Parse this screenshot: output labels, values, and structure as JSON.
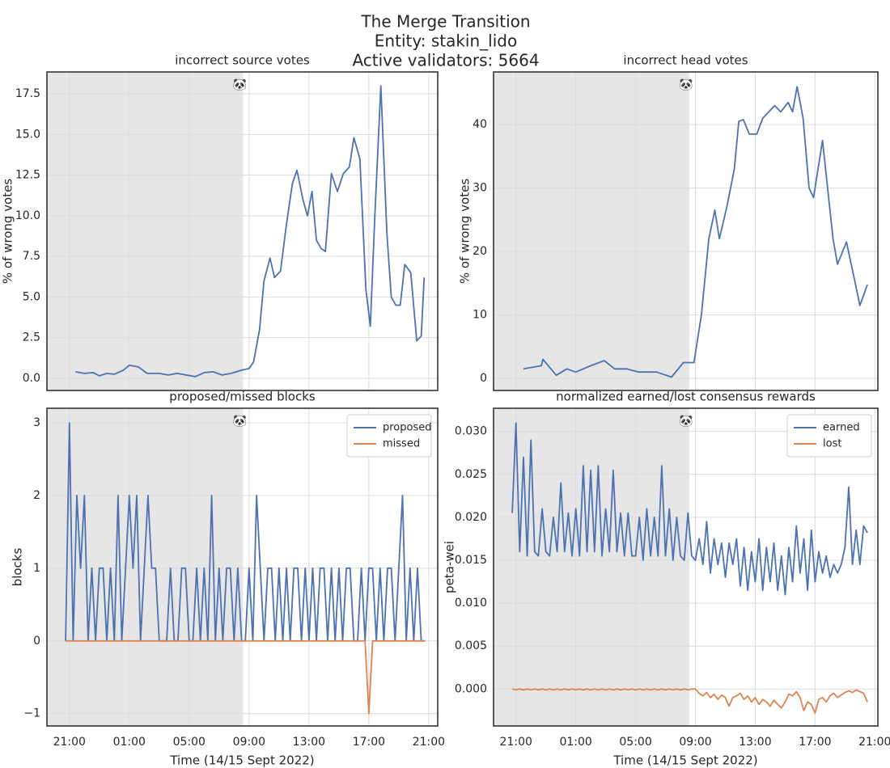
{
  "title": [
    "The Merge Transition",
    "Entity: stakin_lido",
    "Active validators: 5664"
  ],
  "chart_data": [
    {
      "type": "line",
      "title": "incorrect source votes",
      "ylabel": "% of wrong votes",
      "color": "#4c72b0",
      "grid": true,
      "shade": [
        19.5,
        32.6
      ],
      "annotation": {
        "text": "🐼",
        "x": 32.6
      },
      "xlim": [
        19.5,
        45.6
      ],
      "xticks": [
        21,
        25,
        29,
        33,
        37,
        41,
        45
      ],
      "ylim": [
        -0.75,
        18.85
      ],
      "yticks": [
        {
          "value": 0,
          "label": "0.0"
        },
        2.5,
        {
          "value": 5,
          "label": "5.0"
        },
        7.5,
        {
          "value": 10,
          "label": "10.0"
        },
        12.5,
        {
          "value": 15,
          "label": "15.0"
        },
        17.5
      ],
      "x": [
        21.4,
        22.0,
        22.6,
        23.0,
        23.5,
        24.0,
        24.6,
        25.0,
        25.6,
        26.2,
        27.0,
        27.6,
        28.2,
        28.8,
        29.4,
        30.0,
        30.6,
        31.2,
        31.8,
        32.5,
        33.0,
        33.3,
        33.7,
        34.0,
        34.4,
        34.7,
        35.1,
        35.5,
        35.9,
        36.2,
        36.6,
        36.9,
        37.2,
        37.5,
        37.8,
        38.1,
        38.5,
        38.9,
        39.3,
        39.7,
        40.0,
        40.4,
        40.8,
        41.1,
        41.4,
        41.8,
        42.2,
        42.5,
        42.8,
        43.1,
        43.4,
        43.8,
        44.2,
        44.5,
        44.7
      ],
      "values": [
        0.4,
        0.3,
        0.35,
        0.15,
        0.3,
        0.25,
        0.5,
        0.8,
        0.7,
        0.3,
        0.3,
        0.2,
        0.3,
        0.2,
        0.1,
        0.35,
        0.4,
        0.2,
        0.3,
        0.5,
        0.6,
        1.0,
        3.0,
        6.0,
        7.4,
        6.2,
        6.6,
        9.5,
        12.0,
        12.8,
        11.0,
        10.0,
        11.5,
        8.5,
        8.0,
        7.8,
        12.6,
        11.5,
        12.6,
        13.0,
        14.8,
        13.5,
        5.5,
        3.2,
        10.0,
        18.0,
        9.0,
        5.0,
        4.5,
        4.5,
        7.0,
        6.5,
        2.3,
        2.6,
        6.2
      ]
    },
    {
      "type": "line",
      "title": "incorrect head votes",
      "ylabel": "% of wrong votes",
      "color": "#4c72b0",
      "grid": true,
      "shade": [
        19.5,
        32.6
      ],
      "annotation": {
        "text": "🐼",
        "x": 32.6
      },
      "xlim": [
        19.5,
        45.2
      ],
      "xticks": [
        21,
        25,
        29,
        33,
        37,
        41,
        45
      ],
      "ylim": [
        -1.9,
        48.3
      ],
      "yticks": [
        0,
        10,
        20,
        30,
        40
      ],
      "x": [
        21.5,
        22.7,
        22.8,
        23.7,
        24.4,
        25.0,
        26.0,
        26.9,
        27.6,
        28.4,
        29.2,
        30.4,
        31.4,
        32.2,
        32.9,
        33.4,
        33.9,
        34.3,
        34.6,
        35.1,
        35.6,
        35.9,
        36.2,
        36.6,
        37.1,
        37.5,
        38.3,
        38.7,
        39.2,
        39.5,
        39.8,
        40.2,
        40.6,
        40.9,
        41.5,
        42.2,
        42.5,
        43.1,
        43.6,
        44.0,
        44.5
      ],
      "values": [
        1.5,
        2,
        3,
        0.5,
        1.5,
        1,
        2,
        2.8,
        1.5,
        1.5,
        1,
        1,
        0.2,
        2.5,
        2.5,
        10,
        22,
        26.5,
        22,
        27,
        33,
        40.5,
        40.8,
        38.5,
        38.5,
        41,
        43,
        42,
        43.5,
        42,
        46,
        41,
        30,
        28.5,
        37.5,
        22,
        18,
        21.5,
        16,
        11.5,
        14.8
      ]
    },
    {
      "type": "line",
      "title": "proposed/missed blocks",
      "ylabel": "blocks",
      "xlabel": "Time (14/15 Sept 2022)",
      "grid": true,
      "legend": "upper right",
      "shade": [
        19.5,
        32.6
      ],
      "annotation": {
        "text": "🐼",
        "x": 32.6
      },
      "xlim": [
        19.5,
        45.6
      ],
      "xticks": [
        {
          "value": 21,
          "label": "21:00"
        },
        {
          "value": 25,
          "label": "01:00"
        },
        {
          "value": 29,
          "label": "05:00"
        },
        {
          "value": 33,
          "label": "09:00"
        },
        {
          "value": 37,
          "label": "13:00"
        },
        {
          "value": 41,
          "label": "17:00"
        },
        {
          "value": 45,
          "label": "21:00"
        }
      ],
      "ylim": [
        -1.17,
        3.2
      ],
      "yticks": [
        {
          "value": -1,
          "label": "−1"
        },
        0,
        1,
        2,
        3
      ],
      "x": [
        20.75,
        21.0,
        21.25,
        21.5,
        21.75,
        22.0,
        22.25,
        22.5,
        22.75,
        23.0,
        23.25,
        23.5,
        23.75,
        24.0,
        24.25,
        24.5,
        24.75,
        25.0,
        25.25,
        25.5,
        25.75,
        26.0,
        26.25,
        26.5,
        26.75,
        27.0,
        27.25,
        27.5,
        27.75,
        28.0,
        28.25,
        28.5,
        28.75,
        29.0,
        29.25,
        29.5,
        29.75,
        30.0,
        30.25,
        30.5,
        30.75,
        31.0,
        31.25,
        31.5,
        31.75,
        32.0,
        32.25,
        32.5,
        32.75,
        33.0,
        33.25,
        33.5,
        33.75,
        34.0,
        34.25,
        34.5,
        34.75,
        35.0,
        35.25,
        35.5,
        35.75,
        36.0,
        36.25,
        36.5,
        36.75,
        37.0,
        37.25,
        37.5,
        37.75,
        38.0,
        38.25,
        38.5,
        38.75,
        39.0,
        39.25,
        39.5,
        39.75,
        40.0,
        40.25,
        40.5,
        40.75,
        41.0,
        41.25,
        41.5,
        41.75,
        42.0,
        42.25,
        42.5,
        42.75,
        43.0,
        43.25,
        43.5,
        43.75,
        44.0,
        44.25,
        44.5,
        44.75
      ],
      "series": [
        {
          "name": "proposed",
          "color": "#4c72b0",
          "values": [
            0,
            3,
            0,
            2,
            1,
            2,
            0,
            1,
            0,
            1,
            1,
            0,
            1,
            0,
            2,
            0,
            1,
            2,
            1,
            2,
            0,
            1,
            2,
            1,
            1,
            0,
            0,
            0,
            1,
            0,
            0,
            1,
            1,
            0,
            0,
            1,
            0,
            1,
            0,
            2,
            0,
            1,
            0,
            1,
            1,
            0,
            1,
            0,
            0,
            1,
            0,
            2,
            1,
            0,
            1,
            1,
            0,
            1,
            0,
            1,
            0,
            1,
            1,
            0,
            1,
            0,
            1,
            0,
            1,
            1,
            0,
            1,
            0,
            1,
            0,
            1,
            1,
            0,
            0,
            1,
            0,
            1,
            1,
            0,
            1,
            0,
            1,
            1,
            0,
            1,
            2,
            0,
            1,
            0,
            1,
            0,
            0
          ]
        },
        {
          "name": "missed",
          "color": "#dd8452",
          "values": [
            0,
            0,
            0,
            0,
            0,
            0,
            0,
            0,
            0,
            0,
            0,
            0,
            0,
            0,
            0,
            0,
            0,
            0,
            0,
            0,
            0,
            0,
            0,
            0,
            0,
            0,
            0,
            0,
            0,
            0,
            0,
            0,
            0,
            0,
            0,
            0,
            0,
            0,
            0,
            0,
            0,
            0,
            0,
            0,
            0,
            0,
            0,
            0,
            0,
            0,
            0,
            0,
            0,
            0,
            0,
            0,
            0,
            0,
            0,
            0,
            0,
            0,
            0,
            0,
            0,
            0,
            0,
            0,
            0,
            0,
            0,
            0,
            0,
            0,
            0,
            0,
            0,
            0,
            0,
            0,
            0,
            -1,
            0,
            0,
            0,
            0,
            0,
            0,
            0,
            0,
            0,
            0,
            0,
            0,
            0,
            0,
            0
          ]
        }
      ]
    },
    {
      "type": "line",
      "title": "normalized earned/lost consensus rewards",
      "ylabel": "peta-wei",
      "xlabel": "Time (14/15 Sept 2022)",
      "grid": true,
      "legend": "upper right",
      "shade": [
        19.5,
        32.6
      ],
      "annotation": {
        "text": "🐼",
        "x": 32.6
      },
      "xlim": [
        19.5,
        45.2
      ],
      "xticks": [
        {
          "value": 21,
          "label": "21:00"
        },
        {
          "value": 25,
          "label": "01:00"
        },
        {
          "value": 29,
          "label": "05:00"
        },
        {
          "value": 33,
          "label": "09:00"
        },
        {
          "value": 37,
          "label": "13:00"
        },
        {
          "value": 41,
          "label": "17:00"
        },
        {
          "value": 45,
          "label": "21:00"
        }
      ],
      "ylim": [
        -0.0043,
        0.0327
      ],
      "yticks": [
        {
          "value": 0,
          "label": "0.000"
        },
        {
          "value": 0.005,
          "label": "0.005"
        },
        {
          "value": 0.01,
          "label": "0.010"
        },
        {
          "value": 0.015,
          "label": "0.015"
        },
        {
          "value": 0.02,
          "label": "0.020"
        },
        {
          "value": 0.025,
          "label": "0.025"
        },
        {
          "value": 0.03,
          "label": "0.030"
        }
      ],
      "x": [
        20.75,
        21.0,
        21.25,
        21.5,
        21.75,
        22.0,
        22.25,
        22.5,
        22.75,
        23.0,
        23.25,
        23.5,
        23.75,
        24.0,
        24.25,
        24.5,
        24.75,
        25.0,
        25.25,
        25.5,
        25.75,
        26.0,
        26.25,
        26.5,
        26.75,
        27.0,
        27.25,
        27.5,
        27.75,
        28.0,
        28.25,
        28.5,
        28.75,
        29.0,
        29.25,
        29.5,
        29.75,
        30.0,
        30.25,
        30.5,
        30.75,
        31.0,
        31.25,
        31.5,
        31.75,
        32.0,
        32.25,
        32.5,
        32.75,
        33.0,
        33.25,
        33.5,
        33.75,
        34.0,
        34.25,
        34.5,
        34.75,
        35.0,
        35.25,
        35.5,
        35.75,
        36.0,
        36.25,
        36.5,
        36.75,
        37.0,
        37.25,
        37.5,
        37.75,
        38.0,
        38.25,
        38.5,
        38.75,
        39.0,
        39.25,
        39.5,
        39.75,
        40.0,
        40.25,
        40.5,
        40.75,
        41.0,
        41.25,
        41.5,
        41.75,
        42.0,
        42.25,
        42.5,
        42.75,
        43.0,
        43.25,
        43.5,
        43.75,
        44.0,
        44.25,
        44.5
      ],
      "series": [
        {
          "name": "earned",
          "color": "#4c72b0",
          "values": [
            0.0205,
            0.031,
            0.016,
            0.027,
            0.0155,
            0.029,
            0.016,
            0.0155,
            0.021,
            0.016,
            0.0155,
            0.02,
            0.016,
            0.024,
            0.016,
            0.0205,
            0.0155,
            0.021,
            0.0155,
            0.026,
            0.016,
            0.0255,
            0.016,
            0.026,
            0.0155,
            0.021,
            0.016,
            0.0255,
            0.016,
            0.0205,
            0.0155,
            0.0205,
            0.0155,
            0.0155,
            0.02,
            0.015,
            0.021,
            0.0155,
            0.02,
            0.0155,
            0.026,
            0.0155,
            0.021,
            0.015,
            0.02,
            0.0155,
            0.015,
            0.0205,
            0.0155,
            0.015,
            0.0175,
            0.0145,
            0.0195,
            0.0135,
            0.0175,
            0.0145,
            0.017,
            0.013,
            0.017,
            0.0145,
            0.0175,
            0.012,
            0.0165,
            0.0115,
            0.016,
            0.0125,
            0.0175,
            0.0115,
            0.0165,
            0.0125,
            0.017,
            0.0115,
            0.0155,
            0.011,
            0.0165,
            0.0125,
            0.019,
            0.0135,
            0.0175,
            0.0115,
            0.0185,
            0.0125,
            0.016,
            0.0135,
            0.0155,
            0.013,
            0.0145,
            0.0135,
            0.0145,
            0.0165,
            0.0235,
            0.0145,
            0.0185,
            0.0145,
            0.019,
            0.0182
          ]
        },
        {
          "name": "lost",
          "color": "#dd8452",
          "values": [
            0,
            -0.0001,
            0,
            -0.0001,
            0,
            -0.0001,
            0,
            -0.0001,
            0,
            -0.0001,
            0,
            -0.0001,
            0,
            -0.0001,
            0,
            -0.0001,
            0,
            -0.0001,
            0,
            -0.0001,
            0,
            -0.0001,
            0,
            -0.0001,
            0,
            -0.0001,
            0,
            -0.0001,
            0,
            -0.0001,
            0,
            -0.0001,
            0,
            -0.0001,
            0,
            -0.0001,
            0,
            -0.0001,
            0,
            -0.0001,
            0,
            -0.0001,
            0,
            -0.0001,
            0,
            -0.0001,
            0,
            -0.0001,
            0,
            0,
            -0.0005,
            -0.0008,
            -0.0004,
            -0.001,
            -0.0006,
            -0.0012,
            -0.0007,
            -0.001,
            -0.002,
            -0.001,
            -0.0008,
            -0.0005,
            -0.0012,
            -0.0008,
            -0.0015,
            -0.001,
            -0.0018,
            -0.0012,
            -0.0015,
            -0.002,
            -0.0013,
            -0.0018,
            -0.0022,
            -0.0015,
            -0.0006,
            -0.0008,
            -0.0003,
            -0.001,
            -0.0025,
            -0.0015,
            -0.0018,
            -0.0028,
            -0.0012,
            -0.001,
            -0.0015,
            -0.0008,
            -0.0005,
            -0.001,
            -0.0007,
            -0.0004,
            -0.0002,
            -0.0004,
            -0.0001,
            -0.0003,
            -0.0005,
            -0.0015
          ]
        }
      ]
    }
  ]
}
